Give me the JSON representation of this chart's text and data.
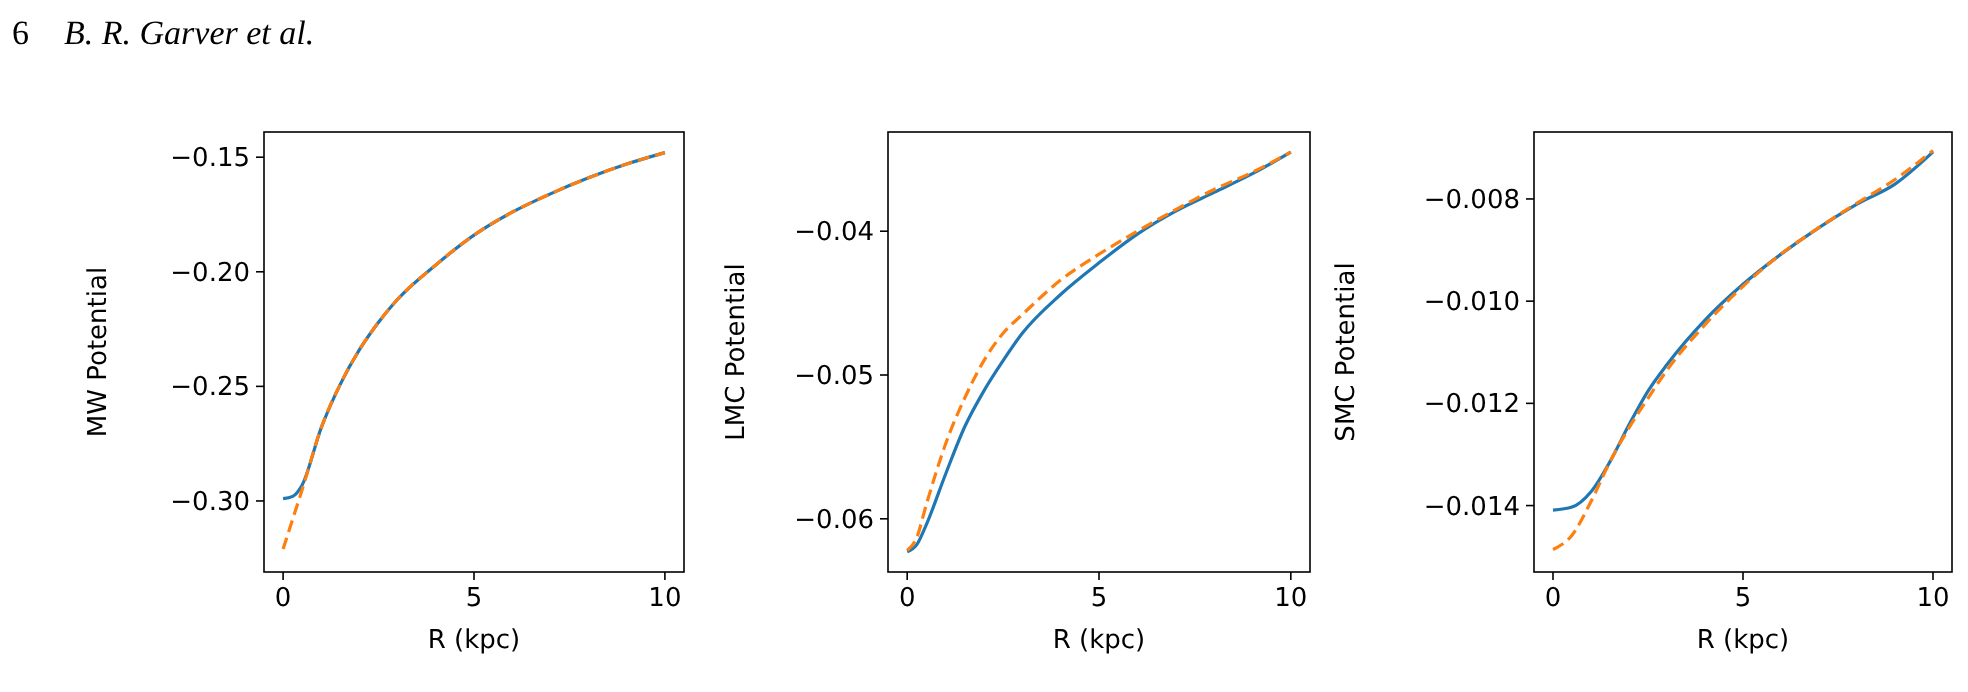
{
  "chart_data": [
    {
      "type": "line",
      "xlabel": "R (kpc)",
      "ylabel": "MW Potential",
      "annotations": [
        "6",
        "B. R. Garver et al."
      ],
      "xlim": [
        -0.5,
        10.5
      ],
      "ylim": [
        -0.331,
        -0.139
      ],
      "xticks": [
        0,
        5,
        10
      ],
      "yticks": [
        {
          "value": -0.3,
          "label": "−0.30"
        },
        {
          "value": -0.25,
          "label": "−0.25"
        },
        {
          "value": -0.2,
          "label": "−0.20"
        },
        {
          "value": -0.15,
          "label": "−0.15"
        }
      ],
      "grid": false,
      "series": [
        {
          "color": "#1f77b4",
          "line_style": "solid",
          "x": [
            0,
            0.25,
            0.5,
            1,
            1.5,
            2,
            2.5,
            3,
            4,
            5,
            6,
            7,
            8,
            9,
            10
          ],
          "values": [
            -0.299,
            -0.298,
            -0.293,
            -0.268,
            -0.249,
            -0.234,
            -0.222,
            -0.212,
            -0.197,
            -0.184,
            -0.174,
            -0.166,
            -0.159,
            -0.153,
            -0.148
          ]
        },
        {
          "color": "#ff7f0e",
          "line_style": "dashed",
          "x": [
            0,
            0.25,
            0.5,
            1,
            1.5,
            2,
            2.5,
            3,
            4,
            5,
            6,
            7,
            8,
            9,
            10
          ],
          "values": [
            -0.321,
            -0.308,
            -0.295,
            -0.268,
            -0.249,
            -0.234,
            -0.222,
            -0.212,
            -0.197,
            -0.184,
            -0.174,
            -0.166,
            -0.159,
            -0.153,
            -0.148
          ]
        }
      ]
    },
    {
      "type": "line",
      "xlabel": "R (kpc)",
      "ylabel": "LMC Potential",
      "xlim": [
        -0.5,
        10.5
      ],
      "ylim": [
        -0.0637,
        -0.0331
      ],
      "xticks": [
        0,
        5,
        10
      ],
      "yticks": [
        {
          "value": -0.06,
          "label": "−0.06"
        },
        {
          "value": -0.05,
          "label": "−0.05"
        },
        {
          "value": -0.04,
          "label": "−0.04"
        }
      ],
      "grid": false,
      "series": [
        {
          "color": "#1f77b4",
          "line_style": "solid",
          "x": [
            0,
            0.25,
            0.5,
            1,
            1.5,
            2,
            2.5,
            3,
            4,
            5,
            6,
            7,
            8,
            9,
            10
          ],
          "values": [
            -0.0623,
            -0.0618,
            -0.0604,
            -0.0569,
            -0.0536,
            -0.0511,
            -0.049,
            -0.0471,
            -0.0444,
            -0.0422,
            -0.0402,
            -0.0386,
            -0.0373,
            -0.036,
            -0.0345
          ]
        },
        {
          "color": "#ff7f0e",
          "line_style": "dashed",
          "x": [
            0,
            0.25,
            0.5,
            1,
            1.5,
            2,
            2.5,
            3,
            4,
            5,
            6,
            7,
            8,
            9,
            10
          ],
          "values": [
            -0.0622,
            -0.0613,
            -0.059,
            -0.0548,
            -0.0516,
            -0.049,
            -0.0471,
            -0.0458,
            -0.0434,
            -0.0416,
            -0.04,
            -0.0385,
            -0.0371,
            -0.0359,
            -0.0345
          ]
        }
      ]
    },
    {
      "type": "line",
      "xlabel": "R (kpc)",
      "ylabel": "SMC Potential",
      "xlim": [
        -0.5,
        10.5
      ],
      "ylim": [
        -0.0153,
        -0.00669
      ],
      "xticks": [
        0,
        5,
        10
      ],
      "yticks": [
        {
          "value": -0.014,
          "label": "−0.014"
        },
        {
          "value": -0.012,
          "label": "−0.012"
        },
        {
          "value": -0.01,
          "label": "−0.010"
        },
        {
          "value": -0.008,
          "label": "−0.008"
        }
      ],
      "grid": false,
      "series": [
        {
          "color": "#1f77b4",
          "line_style": "solid",
          "x": [
            0,
            0.5,
            1,
            1.5,
            2,
            2.5,
            3,
            4,
            5,
            6,
            7,
            8,
            9,
            10
          ],
          "values": [
            -0.01409,
            -0.01403,
            -0.01373,
            -0.01314,
            -0.01242,
            -0.01176,
            -0.01124,
            -0.01037,
            -0.00967,
            -0.00908,
            -0.00856,
            -0.0081,
            -0.00771,
            -0.00708
          ]
        },
        {
          "color": "#ff7f0e",
          "line_style": "dashed",
          "x": [
            0,
            0.5,
            1,
            1.5,
            2,
            2.5,
            3,
            4,
            5,
            6,
            7,
            8,
            9,
            10
          ],
          "values": [
            -0.01486,
            -0.01458,
            -0.01392,
            -0.01314,
            -0.01248,
            -0.0119,
            -0.01135,
            -0.01046,
            -0.00971,
            -0.00908,
            -0.00856,
            -0.00808,
            -0.00762,
            -0.00705
          ]
        }
      ]
    }
  ]
}
